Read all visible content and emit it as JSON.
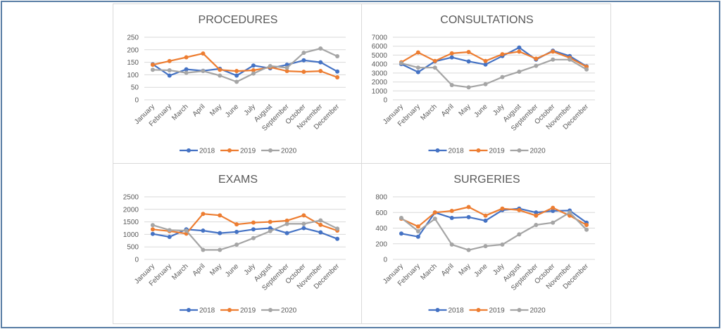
{
  "figure": {
    "frame_color": "#5B7FA6",
    "series_colors": {
      "2018": "#4472C4",
      "2019": "#ED7D31",
      "2020": "#A5A5A5"
    }
  },
  "chart_data": [
    {
      "type": "line",
      "title": "PROCEDURES",
      "xlabel": "",
      "ylabel": "",
      "categories": [
        "January",
        "February",
        "March",
        "April",
        "May",
        "June",
        "July",
        "August",
        "September",
        "October",
        "November",
        "December"
      ],
      "ylim": [
        0,
        250
      ],
      "yticks": [
        0,
        50,
        100,
        150,
        200,
        250
      ],
      "grid": true,
      "legend": "bottom",
      "series": [
        {
          "name": "2018",
          "color": "#4472C4",
          "values": [
            142,
            97,
            122,
            116,
            124,
            97,
            137,
            126,
            140,
            158,
            150,
            113
          ]
        },
        {
          "name": "2019",
          "color": "#ED7D31",
          "values": [
            140,
            155,
            170,
            185,
            120,
            115,
            118,
            130,
            115,
            112,
            115,
            90
          ]
        },
        {
          "name": "2020",
          "color": "#A5A5A5",
          "values": [
            120,
            118,
            108,
            115,
            97,
            72,
            105,
            135,
            128,
            188,
            205,
            174
          ]
        }
      ]
    },
    {
      "type": "line",
      "title": "CONSULTATIONS",
      "xlabel": "",
      "ylabel": "",
      "categories": [
        "January",
        "February",
        "March",
        "April",
        "May",
        "June",
        "July",
        "August",
        "September",
        "October",
        "November",
        "December"
      ],
      "ylim": [
        0,
        7000
      ],
      "yticks": [
        0,
        1000,
        2000,
        3000,
        4000,
        5000,
        6000,
        7000
      ],
      "grid": true,
      "legend": "bottom",
      "series": [
        {
          "name": "2018",
          "color": "#4472C4",
          "values": [
            4000,
            3100,
            4300,
            4750,
            4300,
            3950,
            4900,
            5850,
            4500,
            5500,
            4900,
            3750
          ]
        },
        {
          "name": "2019",
          "color": "#ED7D31",
          "values": [
            4200,
            5300,
            4350,
            5200,
            5350,
            4350,
            5100,
            5400,
            4600,
            5400,
            4700,
            3700
          ]
        },
        {
          "name": "2020",
          "color": "#A5A5A5",
          "values": [
            4100,
            3600,
            3600,
            1650,
            1400,
            1750,
            2550,
            3150,
            3800,
            4500,
            4500,
            3400
          ]
        }
      ]
    },
    {
      "type": "line",
      "title": "EXAMS",
      "xlabel": "",
      "ylabel": "",
      "categories": [
        "January",
        "February",
        "March",
        "April",
        "May",
        "June",
        "July",
        "August",
        "September",
        "October",
        "November",
        "December"
      ],
      "ylim": [
        0,
        2500
      ],
      "yticks": [
        0,
        500,
        1000,
        1500,
        2000,
        2500
      ],
      "grid": true,
      "legend": "bottom",
      "series": [
        {
          "name": "2018",
          "color": "#4472C4",
          "values": [
            1020,
            900,
            1200,
            1150,
            1050,
            1100,
            1200,
            1250,
            1050,
            1250,
            1080,
            820
          ]
        },
        {
          "name": "2019",
          "color": "#ED7D31",
          "values": [
            1200,
            1130,
            1030,
            1820,
            1760,
            1400,
            1470,
            1500,
            1550,
            1760,
            1380,
            1150
          ]
        },
        {
          "name": "2020",
          "color": "#A5A5A5",
          "values": [
            1370,
            1170,
            1150,
            380,
            380,
            590,
            850,
            1130,
            1420,
            1420,
            1560,
            1230
          ]
        }
      ]
    },
    {
      "type": "line",
      "title": "SURGERIES",
      "xlabel": "",
      "ylabel": "",
      "categories": [
        "January",
        "February",
        "March",
        "April",
        "May",
        "June",
        "July",
        "August",
        "September",
        "October",
        "November",
        "December"
      ],
      "ylim": [
        0,
        800
      ],
      "yticks": [
        0,
        200,
        400,
        600,
        800
      ],
      "grid": true,
      "legend": "bottom",
      "series": [
        {
          "name": "2018",
          "color": "#4472C4",
          "values": [
            330,
            290,
            600,
            530,
            540,
            495,
            630,
            650,
            600,
            620,
            625,
            470
          ]
        },
        {
          "name": "2019",
          "color": "#ED7D31",
          "values": [
            520,
            420,
            600,
            620,
            670,
            560,
            650,
            630,
            560,
            660,
            560,
            440
          ]
        },
        {
          "name": "2020",
          "color": "#A5A5A5",
          "values": [
            530,
            360,
            520,
            190,
            120,
            170,
            190,
            320,
            440,
            470,
            600,
            380
          ]
        }
      ]
    }
  ]
}
